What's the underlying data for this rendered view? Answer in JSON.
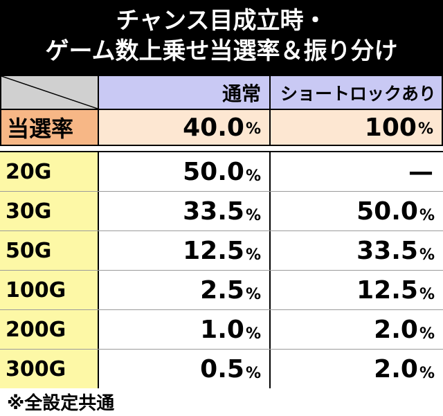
{
  "title": {
    "line1": "チャンス目成立時・",
    "line2": "ゲーム数上乗せ当選率＆振り分け"
  },
  "header": {
    "col_a": "通常",
    "col_b": "ショートロックあり"
  },
  "rate_row": {
    "label": "当選率",
    "a_value": "40.0",
    "a_unit": "%",
    "b_value": "100",
    "b_unit": "%"
  },
  "rows": [
    {
      "label": "20G",
      "a_value": "50.0",
      "a_unit": "%",
      "b_value": "—",
      "b_unit": ""
    },
    {
      "label": "30G",
      "a_value": "33.5",
      "a_unit": "%",
      "b_value": "50.0",
      "b_unit": "%"
    },
    {
      "label": "50G",
      "a_value": "12.5",
      "a_unit": "%",
      "b_value": "33.5",
      "b_unit": "%"
    },
    {
      "label": "100G",
      "a_value": "2.5",
      "a_unit": "%",
      "b_value": "12.5",
      "b_unit": "%"
    },
    {
      "label": "200G",
      "a_value": "1.0",
      "a_unit": "%",
      "b_value": "2.0",
      "b_unit": "%"
    },
    {
      "label": "300G",
      "a_value": "0.5",
      "a_unit": "%",
      "b_value": "2.0",
      "b_unit": "%"
    }
  ],
  "footer": "※全設定共通",
  "colors": {
    "title_bg": "#000000",
    "header_bg": "#c9c9f4",
    "rate_label_bg": "#f7b786",
    "rate_cell_bg": "#fde7d2",
    "row_label_bg": "#fdf8a6"
  }
}
